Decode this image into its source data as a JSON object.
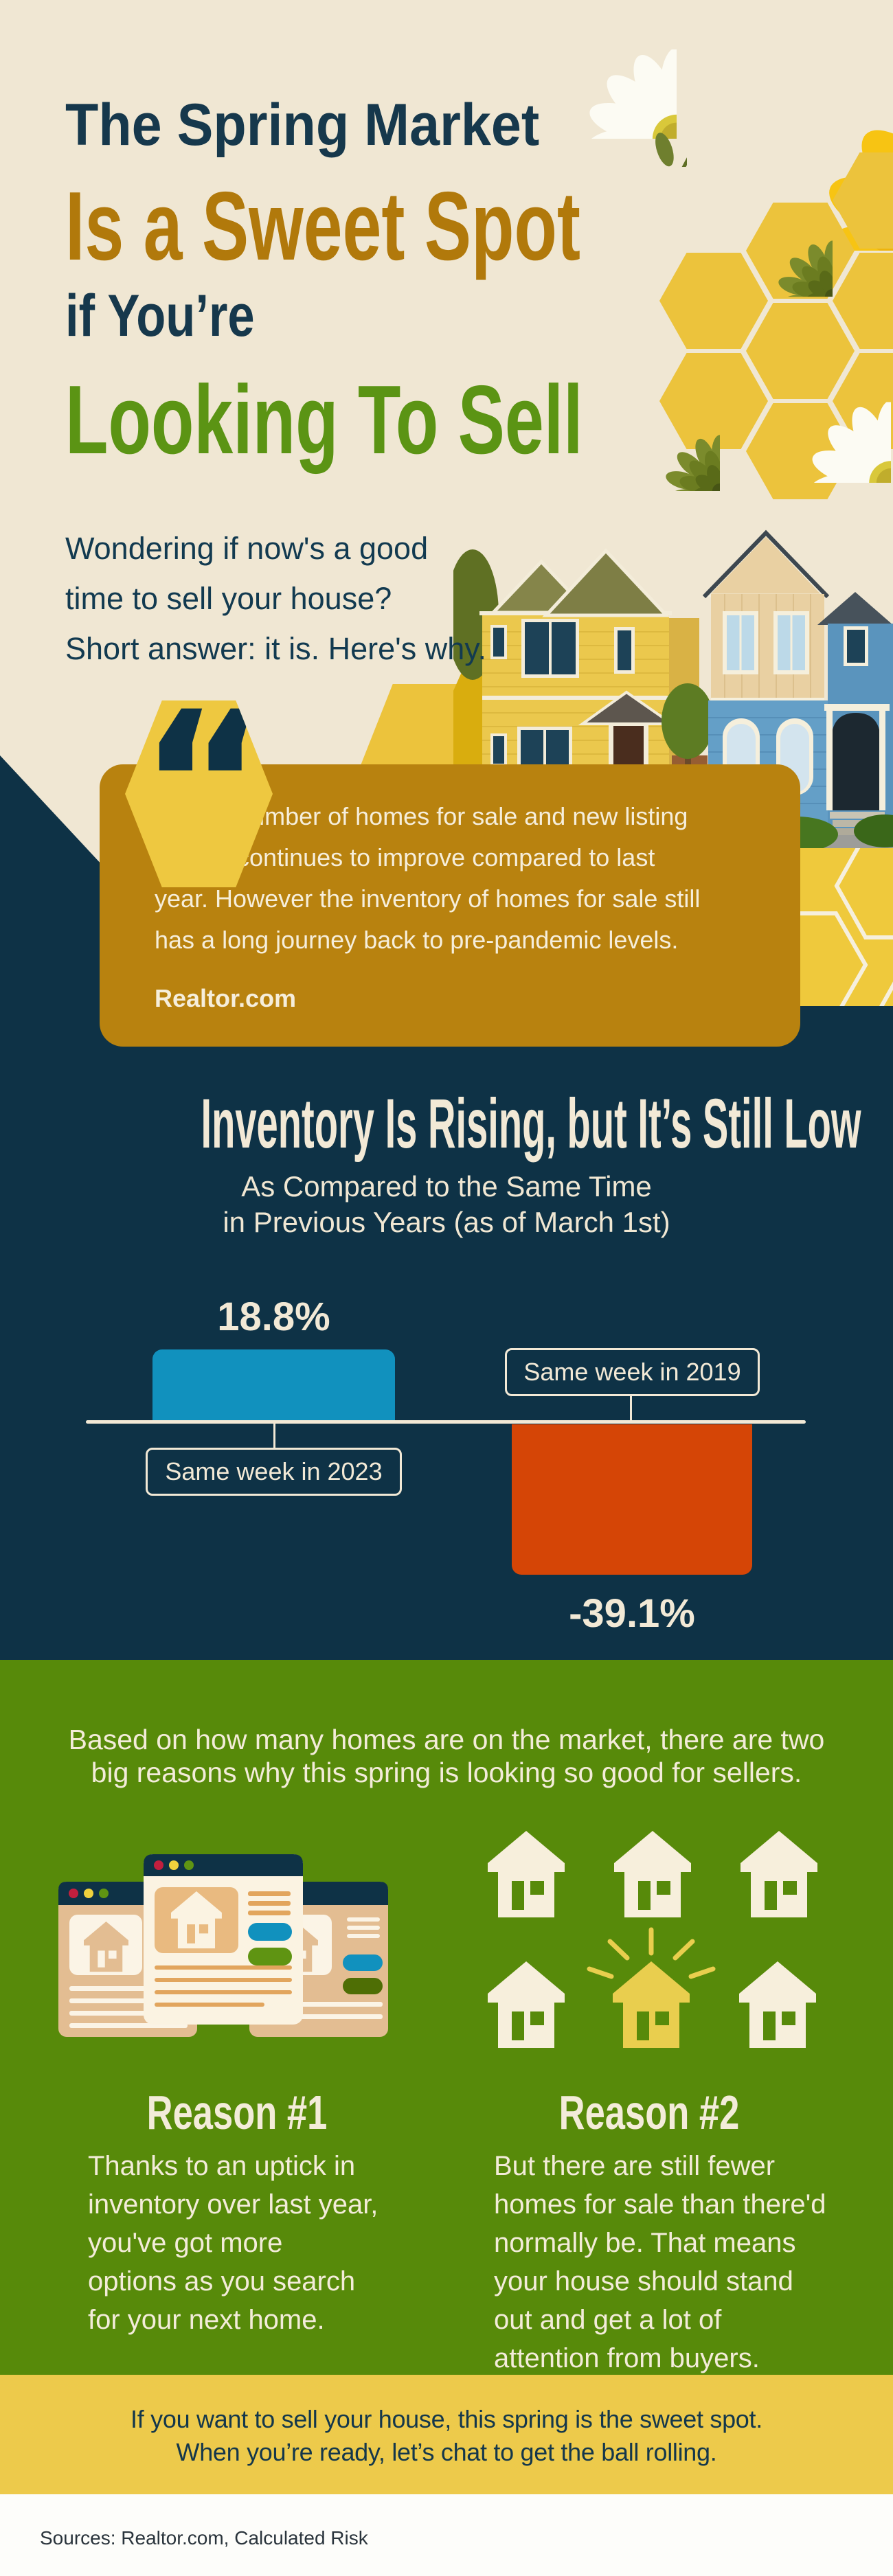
{
  "header": {
    "title_line1": "The Spring Market",
    "title_line2": "Is a Sweet Spot",
    "title_line3": "if You’re",
    "title_line4": "Looking To Sell",
    "intro_lines": [
      "Wondering if now's a good",
      "time to sell your house?",
      "Short answer: it is. Here's why."
    ]
  },
  "quote": {
    "glyph": "“",
    "lines": [
      ". . . the number of homes for sale and new listing",
      "activity continues to improve compared to last",
      "year. However the inventory of homes for sale still",
      "has a long journey back to pre-pandemic levels."
    ],
    "attribution": "Realtor.com"
  },
  "chart": {
    "heading": "Inventory Is Rising, but It’s Still Low",
    "subtitle_lines": [
      "As Compared to the Same Time",
      "in Previous Years (as of March 1st)"
    ],
    "chart_data": {
      "type": "bar",
      "categories": [
        "Same week in 2023",
        "Same week in 2019"
      ],
      "values": [
        18.8,
        -39.1
      ],
      "value_labels": [
        "18.8%",
        "-39.1%"
      ],
      "bar_colors": [
        "#1191be",
        "#d54506"
      ],
      "baseline": 0,
      "axis": "horizontal zero line",
      "legend_position": "labels boxed next to bars"
    }
  },
  "reasons_section": {
    "intro_lines": [
      "Based on how many homes are on the market, there are two",
      "big reasons why this spring is looking so good for sellers."
    ],
    "reason1": {
      "heading": "Reason #1",
      "lines": [
        "Thanks to an uptick in",
        "inventory over last year,",
        "you've got more",
        "options as you search",
        "for your next home."
      ]
    },
    "reason2": {
      "heading": "Reason #2",
      "lines": [
        "But there are still fewer",
        "homes for sale than there'd",
        "normally be. That means",
        "your house should stand",
        "out and get a lot of",
        "attention from buyers."
      ]
    }
  },
  "cta": {
    "lines": [
      "If you want to sell your house, this spring is the sweet spot.",
      "When you’re ready, let’s chat to get the ball rolling."
    ]
  },
  "footer": {
    "sources": "Sources: Realtor.com, Calculated Risk"
  },
  "colors": {
    "cream_background": "#f0e7d3",
    "navy": "#0e3246",
    "amber_quote_box": "#b8820f",
    "hex_yellow": "#ecc33c",
    "green_section": "#578a0a",
    "banner_yellow": "#edca4b",
    "bar_blue": "#1191be",
    "bar_orange": "#d54506",
    "title_amber": "#b1790b",
    "title_green": "#5b9414"
  },
  "decor": {
    "flowers": [
      "white-daisy",
      "yellow-gerbera",
      "green-chrysanthemum",
      "orange-gerbera",
      "pink-flower",
      "leaf-sprig"
    ],
    "motifs": [
      "honeycomb-hexagons",
      "quote-hexagon",
      "victorian-houses-photo",
      "listing-browser-windows",
      "house-icons-grid"
    ]
  }
}
